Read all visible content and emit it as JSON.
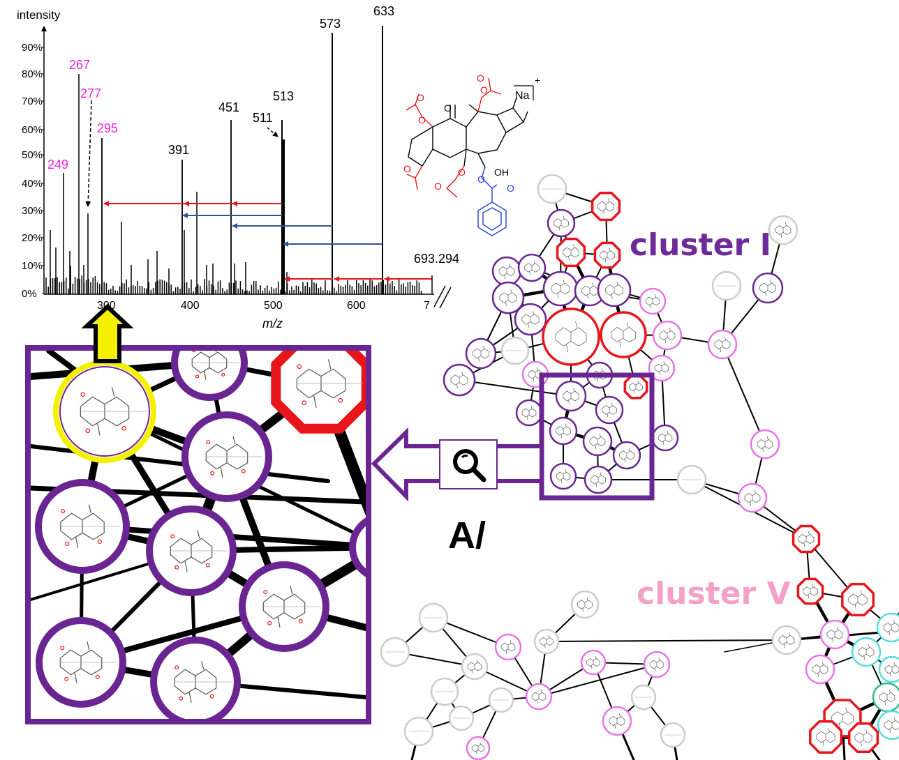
{
  "spectrum": {
    "y_axis_label": "intensity",
    "x_axis_label": "m/z",
    "y_ticks": [
      "90%",
      "80%",
      "70%",
      "60%",
      "50%",
      "40%",
      "30%",
      "20%",
      "10%",
      "0%"
    ],
    "x_ticks": [
      "300",
      "400",
      "500",
      "600",
      "7"
    ],
    "precursor_label": "693.294",
    "peak_labels_pink": [
      "267",
      "277",
      "295",
      "249"
    ],
    "peak_labels_black": [
      "573",
      "633",
      "513",
      "451",
      "511",
      "391"
    ]
  },
  "structure": {
    "ion_label": "Na",
    "charge": "+",
    "oh_label": "OH",
    "o_ketone": "O"
  },
  "network": {
    "cluster_i_label": "cluster I",
    "cluster_v_label": "cluster V",
    "panel_label": "A/"
  },
  "colors": {
    "cluster_i": "#6f2a9a",
    "cluster_v": "#f4a0c8",
    "node_red": "#e8151b",
    "node_purple": "#6a2593",
    "node_pink": "#e874e8",
    "node_grey": "#cccccc",
    "node_cyan": "#55dede",
    "node_teal": "#30b890",
    "highlight_yellow": "#f4f000",
    "arrow_red": "#e8151b",
    "arrow_blue": "#2f5597",
    "pink_label": "#f020e0"
  },
  "icons": [
    "magnifier-icon",
    "up-arrow-icon",
    "left-arrow-icon"
  ]
}
